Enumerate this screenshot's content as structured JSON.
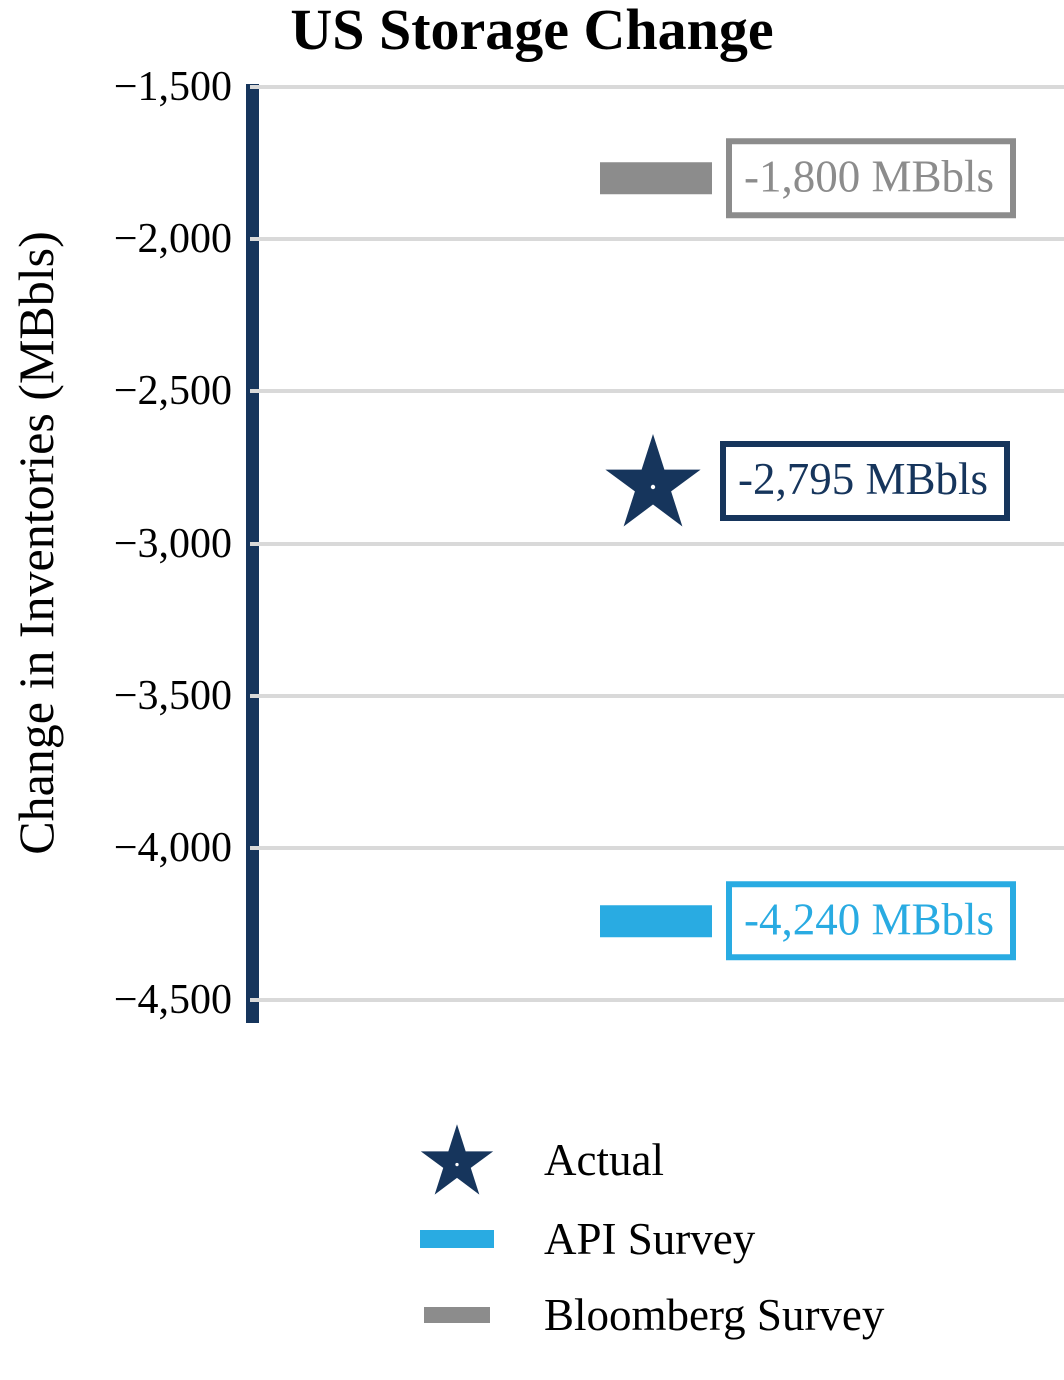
{
  "chart_data": {
    "type": "scatter",
    "title": "US Storage Change",
    "xlabel": "",
    "ylabel": "Change in Inventories (MBbls)",
    "ylim": [
      -4500,
      -1500
    ],
    "yticks": [
      -1500,
      -2000,
      -2500,
      -3000,
      -3500,
      -4000,
      -4500
    ],
    "ytick_labels": [
      "−1,500",
      "−2,000",
      "−2,500",
      "−3,000",
      "−3,500",
      "−4,000",
      "−4,500"
    ],
    "grid": true,
    "legend_position": "bottom",
    "series": [
      {
        "name": "Actual",
        "marker": "star",
        "value": -2795,
        "label": "-2,795 MBbls",
        "color": "#16355C"
      },
      {
        "name": "API Survey",
        "marker": "bar",
        "value": -4240,
        "label": "-4,240 MBbls",
        "color": "#29ABE2"
      },
      {
        "name": "Bloomberg Survey",
        "marker": "bar",
        "value": -1800,
        "label": "-1,800 MBbls",
        "color": "#8C8C8C"
      }
    ]
  },
  "colors": {
    "axis_spine": "#16355C",
    "gridline": "#D9D9D9",
    "title_text": "#000000",
    "legend_text": "#000000"
  }
}
